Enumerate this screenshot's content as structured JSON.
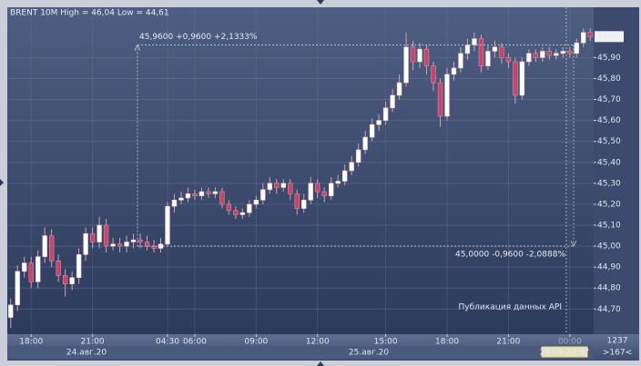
{
  "chart_data": {
    "type": "candlestick",
    "title": "BRENT 10M High = 46,04 Low = 44,61",
    "series": [
      {
        "up_color": "#ffffff",
        "down_color": "#c2476a",
        "wick_color": "#d8a0b0",
        "open": [
          44.66,
          44.72,
          44.88,
          44.92,
          44.83,
          44.95,
          45.05,
          44.93,
          44.86,
          44.82,
          44.85,
          44.96,
          45.06,
          45.02,
          45.1,
          45.0,
          45.01,
          45.0,
          45.02,
          45.03,
          45.02,
          45.0,
          44.99,
          45.01,
          45.19,
          45.22,
          45.23,
          45.25,
          45.24,
          45.26,
          45.25,
          45.26,
          45.2,
          45.17,
          45.15,
          45.16,
          45.2,
          45.22,
          45.27,
          45.3,
          45.28,
          45.3,
          45.25,
          45.18,
          45.22,
          45.3,
          45.26,
          45.24,
          45.3,
          45.31,
          45.36,
          45.4,
          45.46,
          45.52,
          45.58,
          45.6,
          45.66,
          45.72,
          45.78,
          45.95,
          45.88,
          45.94,
          45.86,
          45.78,
          45.62,
          45.82,
          45.85,
          45.92,
          45.96,
          45.99,
          45.86,
          45.93,
          45.95,
          45.9,
          45.88,
          45.72,
          45.88,
          45.92,
          45.9,
          45.93,
          45.91,
          45.92,
          45.93,
          45.92,
          45.97,
          46.02
        ],
        "high": [
          44.75,
          44.91,
          44.95,
          44.95,
          44.98,
          45.09,
          45.08,
          44.96,
          44.89,
          44.88,
          44.99,
          45.09,
          45.09,
          45.14,
          45.13,
          45.04,
          45.04,
          45.05,
          45.06,
          45.06,
          45.05,
          45.03,
          45.04,
          45.21,
          45.25,
          45.26,
          45.28,
          45.27,
          45.28,
          45.28,
          45.28,
          45.28,
          45.22,
          45.19,
          45.18,
          45.22,
          45.24,
          45.3,
          45.33,
          45.32,
          45.32,
          45.32,
          45.27,
          45.25,
          45.33,
          45.32,
          45.28,
          45.33,
          45.34,
          45.39,
          45.43,
          45.49,
          45.55,
          45.61,
          45.63,
          45.69,
          45.75,
          45.82,
          46.02,
          45.98,
          45.97,
          45.96,
          45.88,
          45.8,
          45.85,
          45.88,
          45.95,
          45.99,
          46.02,
          46.01,
          45.96,
          45.98,
          45.97,
          45.92,
          45.9,
          45.9,
          45.94,
          45.94,
          45.95,
          45.95,
          45.94,
          45.95,
          45.95,
          45.99,
          46.04,
          46.04
        ],
        "low": [
          44.61,
          44.69,
          44.85,
          44.8,
          44.8,
          44.92,
          44.9,
          44.83,
          44.76,
          44.79,
          44.82,
          44.93,
          44.99,
          44.99,
          44.97,
          44.98,
          44.97,
          44.97,
          44.99,
          44.99,
          44.98,
          44.97,
          44.97,
          45.0,
          45.16,
          45.2,
          45.21,
          45.22,
          45.22,
          45.23,
          45.23,
          45.18,
          45.15,
          45.13,
          45.13,
          45.14,
          45.18,
          45.2,
          45.25,
          45.25,
          45.26,
          45.22,
          45.15,
          45.16,
          45.2,
          45.23,
          45.21,
          45.22,
          45.28,
          45.29,
          45.34,
          45.38,
          45.44,
          45.5,
          45.55,
          45.58,
          45.64,
          45.7,
          45.76,
          45.84,
          45.85,
          45.82,
          45.74,
          45.57,
          45.6,
          45.79,
          45.83,
          45.89,
          45.93,
          45.83,
          45.84,
          45.9,
          45.87,
          45.85,
          45.68,
          45.7,
          45.86,
          45.88,
          45.88,
          45.89,
          45.89,
          45.9,
          45.9,
          45.9,
          45.95,
          45.98
        ],
        "close": [
          44.72,
          44.88,
          44.92,
          44.83,
          44.95,
          45.05,
          44.93,
          44.86,
          44.82,
          44.85,
          44.96,
          45.06,
          45.02,
          45.1,
          45.0,
          45.01,
          45.0,
          45.02,
          45.03,
          45.02,
          45.0,
          44.99,
          45.01,
          45.19,
          45.22,
          45.23,
          45.25,
          45.24,
          45.26,
          45.25,
          45.26,
          45.2,
          45.17,
          45.15,
          45.16,
          45.2,
          45.22,
          45.27,
          45.3,
          45.28,
          45.3,
          45.25,
          45.18,
          45.22,
          45.3,
          45.26,
          45.24,
          45.3,
          45.31,
          45.36,
          45.4,
          45.46,
          45.52,
          45.58,
          45.6,
          45.66,
          45.72,
          45.78,
          45.95,
          45.88,
          45.94,
          45.86,
          45.78,
          45.62,
          45.82,
          45.85,
          45.92,
          45.96,
          45.99,
          45.86,
          45.93,
          45.95,
          45.9,
          45.88,
          45.72,
          45.88,
          45.92,
          45.9,
          45.93,
          45.91,
          45.92,
          45.93,
          45.92,
          45.97,
          46.02,
          46.0
        ]
      }
    ],
    "ylim": [
      44.58,
      46.14
    ],
    "yticks": [
      {
        "value": 44.7,
        "label": "44,70"
      },
      {
        "value": 44.8,
        "label": "44,80"
      },
      {
        "value": 44.9,
        "label": "44,90"
      },
      {
        "value": 45.0,
        "label": "45,00"
      },
      {
        "value": 45.1,
        "label": "45,10"
      },
      {
        "value": 45.2,
        "label": "45,20"
      },
      {
        "value": 45.3,
        "label": "45,30"
      },
      {
        "value": 45.4,
        "label": "45,40"
      },
      {
        "value": 45.5,
        "label": "45,50"
      },
      {
        "value": 45.6,
        "label": "45,60"
      },
      {
        "value": 45.7,
        "label": "45,70"
      },
      {
        "value": 45.8,
        "label": "45,80"
      },
      {
        "value": 45.9,
        "label": "45,90"
      }
    ],
    "last_price": {
      "value": 46.0,
      "label": "46,00"
    },
    "xlim": [
      0,
      86
    ],
    "xticks": [
      {
        "value": 3,
        "label": "18:00"
      },
      {
        "value": 12,
        "label": "21:00"
      },
      {
        "value": 23,
        "label": "04:30"
      },
      {
        "value": 27,
        "label": "06:00"
      },
      {
        "value": 36,
        "label": "09:00"
      },
      {
        "value": 45,
        "label": "12:00"
      },
      {
        "value": 55,
        "label": "15:00"
      },
      {
        "value": 64,
        "label": "18:00"
      },
      {
        "value": 73,
        "label": "21:00"
      },
      {
        "value": 82,
        "label": "00:00"
      }
    ],
    "dates": [
      "24.авг.20",
      "25.авг.20"
    ],
    "grid": true,
    "measure": [
      {
        "value": 45.96,
        "label": "45,9600 +0,9600 +2,1333%"
      },
      {
        "value": 45.0,
        "label": "45,0000 -0,9600 -2,0888%"
      }
    ],
    "event_label": "Публикация данных API",
    "cursor_time": "25.08 23:37",
    "bars_count": "1237",
    "scroll_label": ">167<"
  }
}
